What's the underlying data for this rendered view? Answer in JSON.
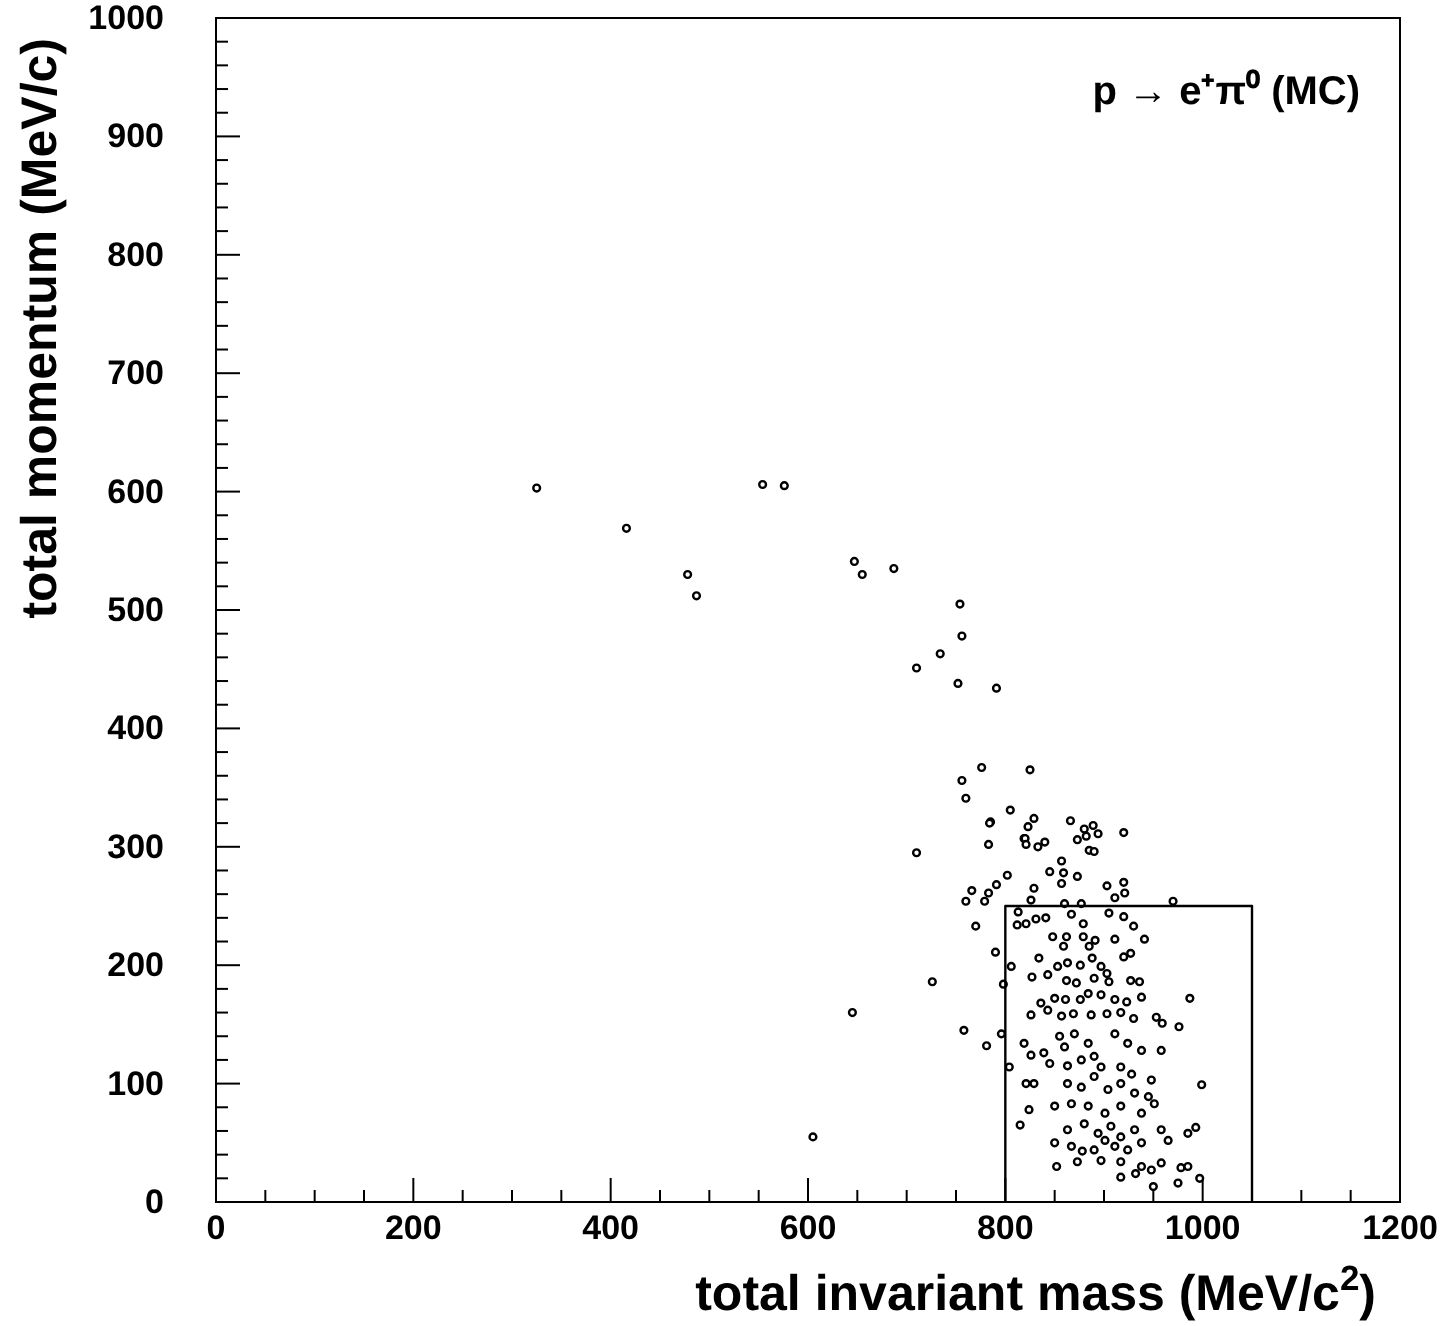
{
  "chart_data": {
    "type": "scatter",
    "title": "p → e⁺π⁰ (MC)",
    "xlabel": "total invariant mass (MeV/c$^{2}$)",
    "ylabel": "total momentum (MeV/c)",
    "xlim": [
      0,
      1200
    ],
    "ylim": [
      0,
      1000
    ],
    "xticks": [
      0,
      {
        "value": 50,
        "label": null
      },
      {
        "value": 100,
        "label": null
      },
      {
        "value": 150,
        "label": null
      },
      200,
      {
        "value": 250,
        "label": null
      },
      {
        "value": 300,
        "label": null
      },
      {
        "value": 350,
        "label": null
      },
      400,
      {
        "value": 450,
        "label": null
      },
      {
        "value": 500,
        "label": null
      },
      {
        "value": 550,
        "label": null
      },
      600,
      {
        "value": 650,
        "label": null
      },
      {
        "value": 700,
        "label": null
      },
      {
        "value": 750,
        "label": null
      },
      800,
      {
        "value": 850,
        "label": null
      },
      {
        "value": 900,
        "label": null
      },
      {
        "value": 950,
        "label": null
      },
      1000,
      {
        "value": 1050,
        "label": null
      },
      {
        "value": 1100,
        "label": null
      },
      {
        "value": 1150,
        "label": null
      },
      1200
    ],
    "yticks": [
      0,
      {
        "value": 20,
        "label": null
      },
      {
        "value": 40,
        "label": null
      },
      {
        "value": 60,
        "label": null
      },
      {
        "value": 80,
        "label": null
      },
      100,
      {
        "value": 120,
        "label": null
      },
      {
        "value": 140,
        "label": null
      },
      {
        "value": 160,
        "label": null
      },
      {
        "value": 180,
        "label": null
      },
      200,
      {
        "value": 220,
        "label": null
      },
      {
        "value": 240,
        "label": null
      },
      {
        "value": 260,
        "label": null
      },
      {
        "value": 280,
        "label": null
      },
      300,
      {
        "value": 320,
        "label": null
      },
      {
        "value": 340,
        "label": null
      },
      {
        "value": 360,
        "label": null
      },
      {
        "value": 380,
        "label": null
      },
      400,
      {
        "value": 420,
        "label": null
      },
      {
        "value": 440,
        "label": null
      },
      {
        "value": 460,
        "label": null
      },
      {
        "value": 480,
        "label": null
      },
      500,
      {
        "value": 520,
        "label": null
      },
      {
        "value": 540,
        "label": null
      },
      {
        "value": 560,
        "label": null
      },
      {
        "value": 580,
        "label": null
      },
      600,
      {
        "value": 620,
        "label": null
      },
      {
        "value": 640,
        "label": null
      },
      {
        "value": 660,
        "label": null
      },
      {
        "value": 680,
        "label": null
      },
      700,
      {
        "value": 720,
        "label": null
      },
      {
        "value": 740,
        "label": null
      },
      {
        "value": 760,
        "label": null
      },
      {
        "value": 780,
        "label": null
      },
      800,
      {
        "value": 820,
        "label": null
      },
      {
        "value": 840,
        "label": null
      },
      {
        "value": 860,
        "label": null
      },
      {
        "value": 880,
        "label": null
      },
      900,
      {
        "value": 920,
        "label": null
      },
      {
        "value": 940,
        "label": null
      },
      {
        "value": 960,
        "label": null
      },
      {
        "value": 980,
        "label": null
      },
      1000
    ],
    "series": [
      {
        "color": "#000000",
        "marker": "circle",
        "x": [
          325,
          416,
          478,
          487,
          554,
          576,
          647,
          655,
          687,
          754,
          756,
          734,
          710,
          752,
          791,
          776,
          825,
          756,
          760,
          805,
          785,
          829,
          819,
          605,
          645,
          710,
          726,
          784,
          783,
          823,
          820,
          821,
          833,
          840,
          866,
          880,
          882,
          889,
          894,
          873,
          885,
          890,
          920,
          857,
          845,
          859,
          873,
          857,
          802,
          791,
          766,
          783,
          760,
          779,
          829,
          903,
          920,
          921,
          911,
          826,
          860,
          877,
          970,
          770,
          790,
          798,
          758,
          781,
          796,
          813,
          821,
          831,
          841,
          812,
          867,
          879,
          905,
          920,
          930,
          848,
          862,
          879,
          859,
          885,
          891,
          911,
          941,
          920,
          927,
          806,
          834,
          853,
          863,
          876,
          888,
          897,
          903,
          827,
          843,
          862,
          872,
          890,
          905,
          927,
          936,
          836,
          850,
          861,
          876,
          884,
          897,
          911,
          923,
          938,
          826,
          843,
          857,
          869,
          887,
          903,
          917,
          930,
          953,
          959,
          976,
          987,
          855,
          870,
          860,
          884,
          911,
          924,
          938,
          958,
          819,
          826,
          839,
          845,
          863,
          877,
          890,
          897,
          917,
          928,
          948,
          999,
          804,
          821,
          829,
          863,
          877,
          890,
          904,
          917,
          931,
          945,
          850,
          867,
          884,
          901,
          917,
          938,
          951,
          824,
          863,
          880,
          894,
          907,
          917,
          931,
          958,
          985,
          993,
          815,
          850,
          867,
          890,
          911,
          924,
          938,
          965,
          852,
          873,
          897,
          917,
          938,
          958,
          978,
          985,
          917,
          932,
          948,
          975,
          950,
          997,
          878,
          901
        ],
        "values": [
          603,
          569,
          530,
          512,
          606,
          605,
          541,
          530,
          535,
          505,
          478,
          463,
          451,
          438,
          434,
          367,
          365,
          356,
          341,
          331,
          321,
          324,
          307,
          55,
          160,
          295,
          186,
          320,
          302,
          317,
          307,
          302,
          300,
          304,
          322,
          315,
          309,
          318,
          311,
          306,
          297,
          296,
          312,
          288,
          279,
          278,
          275,
          269,
          276,
          268,
          263,
          261,
          254,
          254,
          265,
          267,
          270,
          261,
          257,
          255,
          252,
          252,
          254,
          233,
          211,
          184,
          145,
          132,
          142,
          245,
          235,
          239,
          240,
          234,
          243,
          235,
          244,
          241,
          233,
          224,
          224,
          224,
          216,
          216,
          221,
          222,
          222,
          207,
          210,
          199,
          206,
          199,
          202,
          200,
          206,
          199,
          193,
          190,
          192,
          187,
          185,
          189,
          186,
          187,
          186,
          168,
          172,
          171,
          171,
          176,
          175,
          171,
          169,
          173,
          158,
          162,
          157,
          159,
          158,
          159,
          160,
          155,
          156,
          151,
          148,
          172,
          140,
          142,
          131,
          134,
          142,
          134,
          128,
          128,
          134,
          124,
          126,
          117,
          115,
          120,
          123,
          114,
          114,
          108,
          103,
          99,
          114,
          100,
          100,
          100,
          97,
          106,
          95,
          100,
          92,
          89,
          81,
          83,
          81,
          75,
          81,
          75,
          83,
          78,
          61,
          66,
          58,
          64,
          55,
          61,
          61,
          58,
          63,
          65,
          50,
          47,
          44,
          47,
          44,
          50,
          52,
          30,
          34,
          35,
          34,
          30,
          33,
          29,
          30,
          21,
          24,
          27,
          16,
          13,
          20,
          43,
          52
        ]
      },
      {
        "type": "line",
        "color": "#000000",
        "x": [
          800,
          800,
          1050,
          1050
        ],
        "values": [
          0,
          250,
          250,
          0
        ]
      }
    ]
  }
}
